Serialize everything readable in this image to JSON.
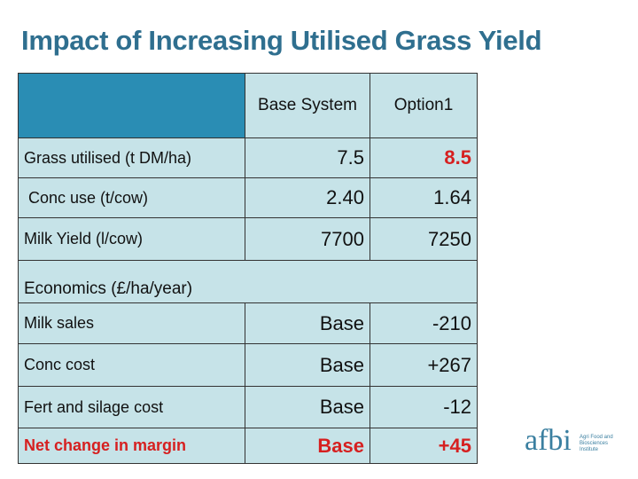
{
  "title": "Impact of Increasing Utilised Grass Yield",
  "table": {
    "header": [
      "Base System",
      "Option1"
    ],
    "rows": [
      [
        "Grass utilised (t DM/ha)",
        "7.5",
        "8.5"
      ],
      [
        "Conc use (t/cow)",
        "2.40",
        "1.64"
      ],
      [
        "Milk Yield (l/cow)",
        "7700",
        "7250"
      ],
      [
        "Economics (£/ha/year)"
      ],
      [
        "Milk sales",
        "Base",
        "-210"
      ],
      [
        "Conc cost",
        "Base",
        "+267"
      ],
      [
        "Fert and silage cost",
        "Base",
        "-12"
      ],
      [
        "Net change in margin",
        "Base",
        "+45"
      ]
    ]
  },
  "logo": {
    "name": "afbi",
    "subtitle": "Agri Food and Biosciences Institute"
  }
}
